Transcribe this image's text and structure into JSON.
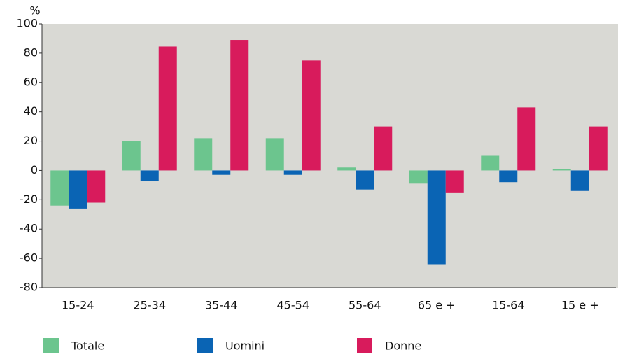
{
  "chart_data": {
    "type": "bar",
    "y_label": "%",
    "categories": [
      "15-24",
      "25-34",
      "35-44",
      "45-54",
      "55-64",
      "65 e +",
      "15-64",
      "15 e +"
    ],
    "series": [
      {
        "name": "Totale",
        "color": "#6cc58e",
        "values": [
          -24,
          20,
          22,
          22,
          2,
          -9,
          10,
          1
        ]
      },
      {
        "name": "Uomini",
        "color": "#0a64b4",
        "values": [
          -26,
          -7,
          -3,
          -3,
          -13,
          -64,
          -8,
          -14
        ]
      },
      {
        "name": "Donne",
        "color": "#d81b5c",
        "values": [
          -22,
          84.5,
          89,
          75,
          30,
          -15,
          43,
          30
        ]
      }
    ],
    "ylim": [
      -80,
      100
    ],
    "yticks": [
      -80,
      -60,
      -40,
      -20,
      0,
      20,
      40,
      60,
      80,
      100
    ],
    "grid": false,
    "legend": "bottom"
  }
}
